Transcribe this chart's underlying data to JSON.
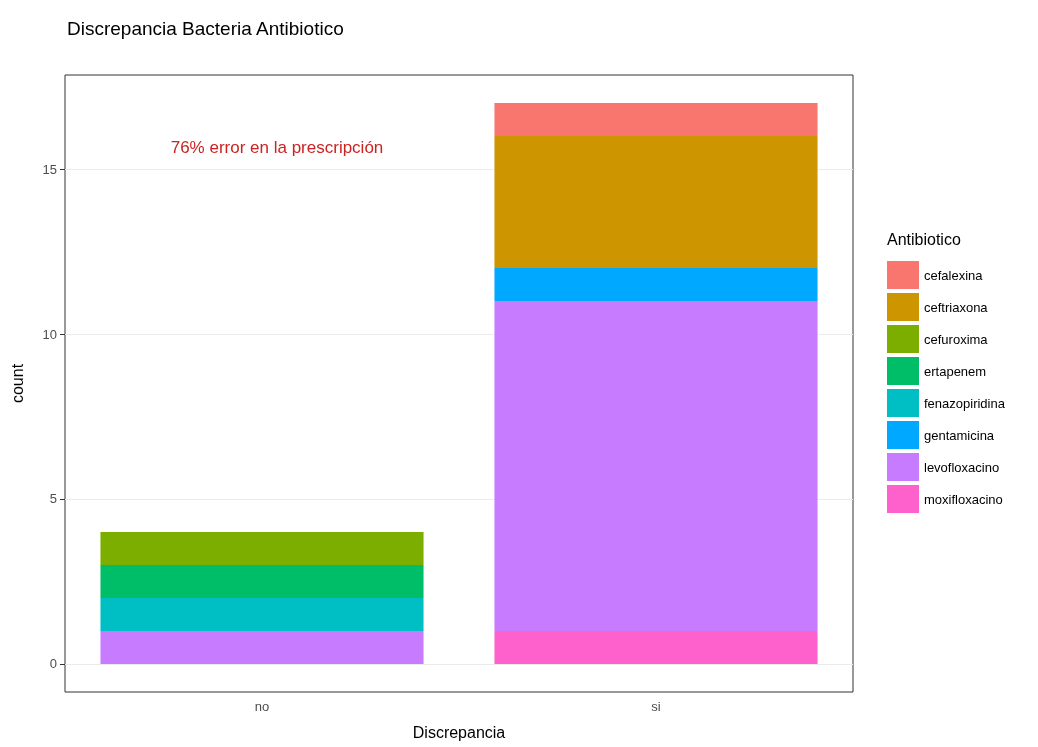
{
  "chart_data": {
    "type": "bar",
    "title": "Discrepancia Bacteria Antibiotico",
    "xlabel": "Discrepancia",
    "ylabel": "count",
    "legend_title": "Antibiotico",
    "categories": [
      "no",
      "si"
    ],
    "stacked": true,
    "series": [
      {
        "name": "moxifloxacino",
        "color": "#ff61cc",
        "values": [
          null,
          1
        ]
      },
      {
        "name": "levofloxacino",
        "color": "#c77cff",
        "values": [
          1,
          10
        ]
      },
      {
        "name": "gentamicina",
        "color": "#00a9ff",
        "values": [
          null,
          1
        ]
      },
      {
        "name": "fenazopiridina",
        "color": "#00bfc4",
        "values": [
          1,
          null
        ]
      },
      {
        "name": "ertapenem",
        "color": "#00be67",
        "values": [
          1,
          null
        ]
      },
      {
        "name": "cefuroxima",
        "color": "#7cae00",
        "values": [
          1,
          null
        ]
      },
      {
        "name": "ceftriaxona",
        "color": "#cd9600",
        "values": [
          null,
          4
        ]
      },
      {
        "name": "cefalexina",
        "color": "#f8766d",
        "values": [
          null,
          1
        ]
      }
    ],
    "ylim": [
      -0.85,
      17.85
    ],
    "yticks": [
      0,
      5,
      10,
      15
    ],
    "grid": true,
    "legend": "right",
    "annotations": [
      "76% error en la prescripción"
    ]
  }
}
